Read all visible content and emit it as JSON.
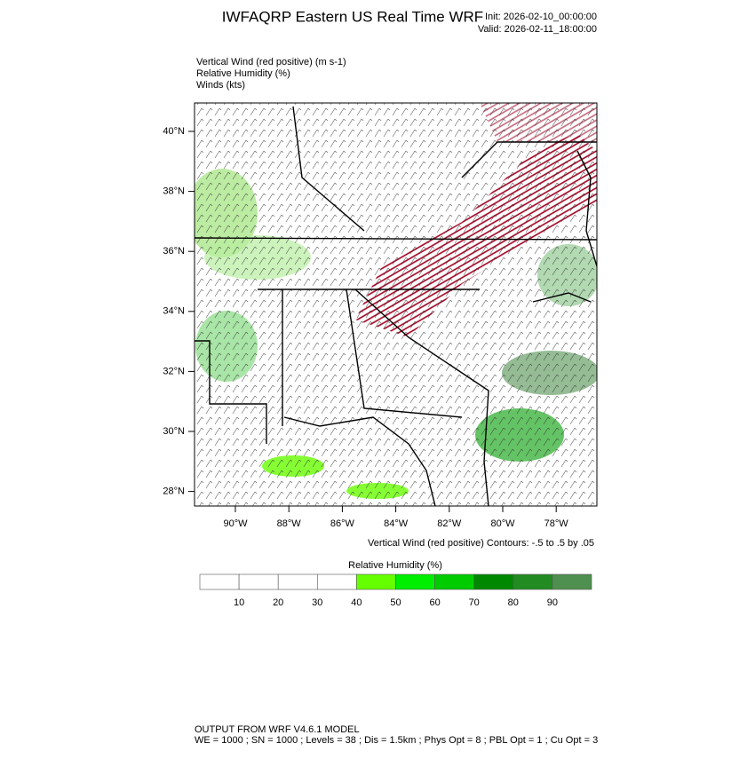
{
  "header": {
    "title": "IWFAQRP Eastern US Real Time WRF",
    "init": "Init: 2026-02-10_00:00:00",
    "valid": "Valid: 2026-02-11_18:00:00"
  },
  "fields": [
    "Vertical Wind (red positive)   (m s-1)",
    "Relative Humidity   (%)",
    "Winds   (kts)"
  ],
  "map": {
    "lat_labels": [
      "40°N",
      "38°N",
      "36°N",
      "34°N",
      "32°N",
      "30°N",
      "28°N"
    ],
    "lon_labels": [
      "90°W",
      "88°W",
      "86°W",
      "84°W",
      "82°W",
      "80°W",
      "78°W"
    ],
    "contour_note": "Vertical Wind (red positive) Contours: -.5 to .5 by .05"
  },
  "colorbar": {
    "title": "Relative Humidity  (%)",
    "colors": [
      "#ffffff",
      "#ffffff",
      "#ffffff",
      "#ffffff",
      "#66ff00",
      "#00ee00",
      "#00cc00",
      "#008800",
      "#228b22",
      "#4f8f4f"
    ],
    "labels": [
      "10",
      "20",
      "30",
      "40",
      "50",
      "60",
      "70",
      "80",
      "90"
    ]
  },
  "footer": [
    "OUTPUT FROM WRF V4.6.1 MODEL",
    "WE = 1000 ; SN = 1000 ; Levels = 38 ; Dis = 1.5km ; Phys Opt = 8 ; PBL Opt = 1 ; Cu Opt = 3"
  ]
}
